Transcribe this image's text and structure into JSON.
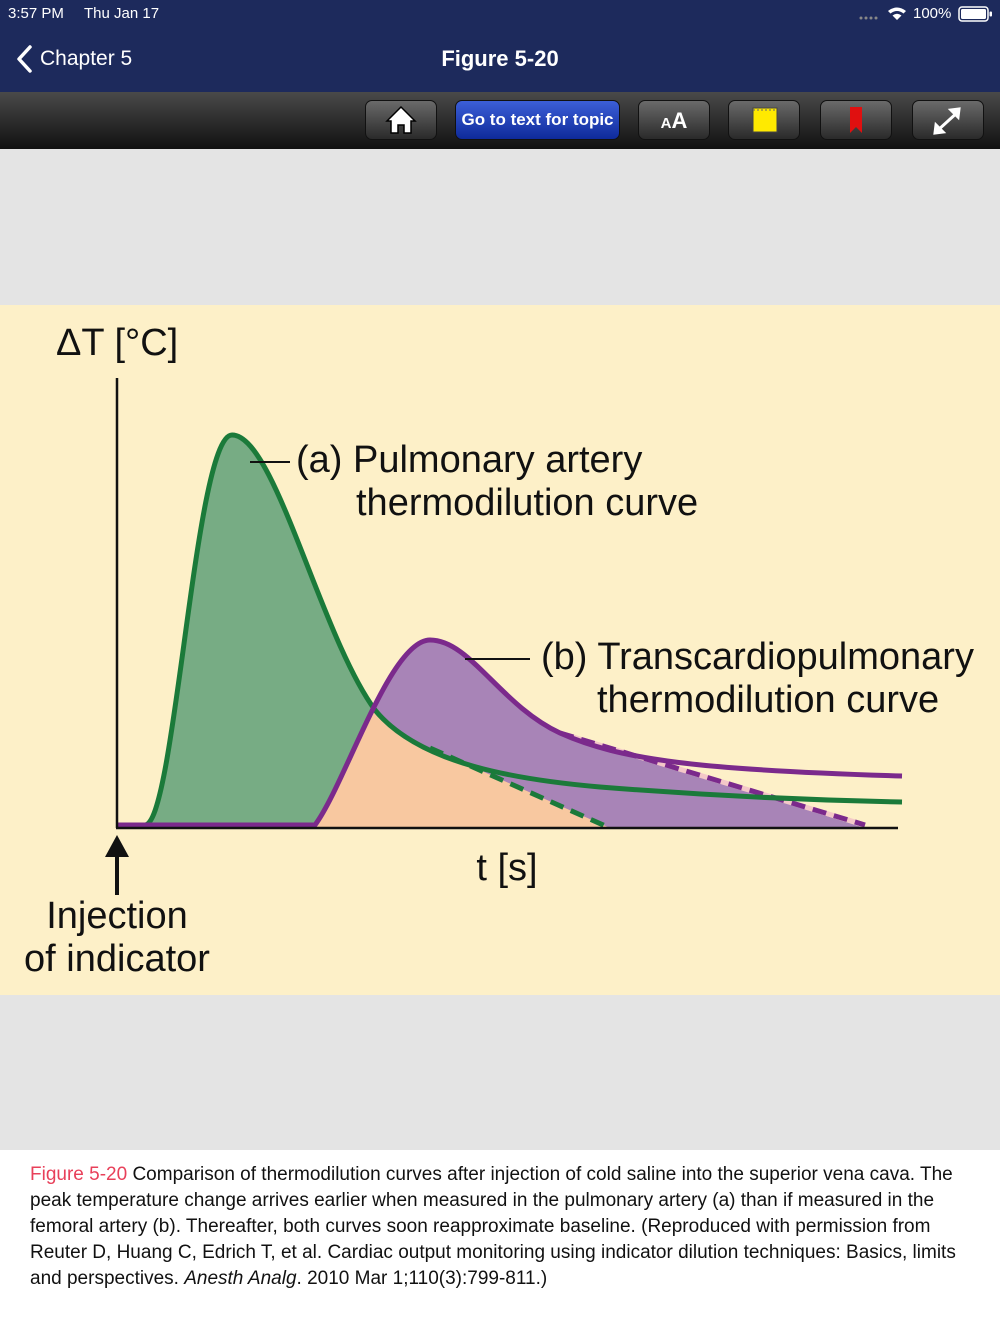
{
  "status_bar": {
    "time": "3:57 PM",
    "date": "Thu Jan 17",
    "battery": "100%"
  },
  "nav_bar": {
    "back": "Chapter 5",
    "title": "Figure 5-20"
  },
  "toolbar": {
    "topic_button": "Go to text for topic",
    "font_icon": [
      "A",
      "A"
    ]
  },
  "figure": {
    "y_axis_label": "ΔT [°C]",
    "x_axis_label": "t [s]",
    "annotation": [
      "Injection",
      "of indicator"
    ],
    "curve_a_label": [
      "(a) Pulmonary artery",
      "thermodilution curve"
    ],
    "curve_b_label": [
      "(b) Transcardiopulmonary",
      "thermodilution curve"
    ]
  },
  "caption": {
    "label": "Figure 5-20",
    "text": "Comparison of thermodilution curves after injection of cold saline into the superior vena cava. The peak temperature change arrives earlier when measured in the pulmonary artery (a) than if measured in the femoral artery (b). Thereafter, both curves soon reapproximate baseline. (Reproduced with permission from Reuter D, Huang C, Edrich T, et al. Cardiac output monitoring using indicator dilution techniques: Basics, limits and perspectives.",
    "journal": "Anesth Analg",
    "citation_end": ". 2010 Mar 1;110(3):799-811.)"
  }
}
